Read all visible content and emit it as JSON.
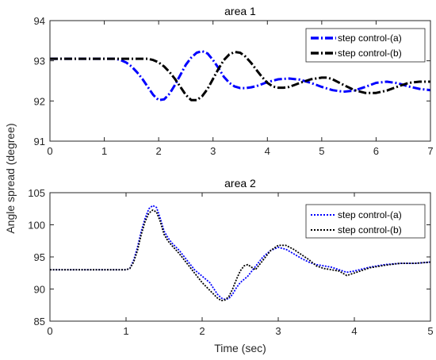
{
  "figure": {
    "shared_ylabel": "Angle spread (degree)"
  },
  "chart_data": [
    {
      "type": "line",
      "title": "area 1",
      "xlabel": "",
      "ylabel": "Angle spread (degree)",
      "xlim": [
        0,
        7
      ],
      "ylim": [
        91,
        94
      ],
      "xticks": [
        0,
        1,
        2,
        3,
        4,
        5,
        6,
        7
      ],
      "yticks": [
        91,
        92,
        93,
        94
      ],
      "grid": false,
      "legend_position": "top-right",
      "series": [
        {
          "name": "step control-(a)",
          "color": "#0000ff",
          "style": "dashdot-thick",
          "x": [
            0,
            1.2,
            1.3,
            1.4,
            1.5,
            1.6,
            1.7,
            1.8,
            1.9,
            2.0,
            2.1,
            2.2,
            2.3,
            2.4,
            2.5,
            2.6,
            2.7,
            2.8,
            2.9,
            3.0,
            3.1,
            3.2,
            3.3,
            3.4,
            3.5,
            3.6,
            3.7,
            3.8,
            3.9,
            4.0,
            4.2,
            4.4,
            4.6,
            4.8,
            5.0,
            5.2,
            5.4,
            5.6,
            5.8,
            6.0,
            6.2,
            6.4,
            6.6,
            6.8,
            7.0
          ],
          "values": [
            93.05,
            93.05,
            93.02,
            92.96,
            92.86,
            92.72,
            92.55,
            92.35,
            92.15,
            92.02,
            92.04,
            92.18,
            92.4,
            92.65,
            92.9,
            93.08,
            93.2,
            93.24,
            93.18,
            93.02,
            92.82,
            92.6,
            92.45,
            92.36,
            92.32,
            92.32,
            92.34,
            92.37,
            92.42,
            92.47,
            92.54,
            92.56,
            92.53,
            92.45,
            92.35,
            92.27,
            92.23,
            92.26,
            92.35,
            92.45,
            92.48,
            92.44,
            92.36,
            92.3,
            92.27
          ]
        },
        {
          "name": "step control-(b)",
          "color": "#000000",
          "style": "dashdot-thick",
          "x": [
            0,
            1.8,
            1.9,
            2.0,
            2.1,
            2.2,
            2.3,
            2.4,
            2.5,
            2.6,
            2.7,
            2.8,
            2.9,
            3.0,
            3.1,
            3.2,
            3.3,
            3.4,
            3.5,
            3.6,
            3.7,
            3.8,
            3.9,
            4.0,
            4.1,
            4.2,
            4.3,
            4.4,
            4.5,
            4.6,
            4.8,
            5.0,
            5.1,
            5.2,
            5.4,
            5.6,
            5.8,
            6.0,
            6.2,
            6.4,
            6.6,
            6.8,
            7.0
          ],
          "values": [
            93.05,
            93.05,
            93.02,
            92.96,
            92.86,
            92.72,
            92.55,
            92.35,
            92.15,
            92.02,
            92.02,
            92.12,
            92.3,
            92.55,
            92.8,
            93.02,
            93.16,
            93.22,
            93.2,
            93.1,
            92.95,
            92.77,
            92.6,
            92.45,
            92.36,
            92.33,
            92.33,
            92.35,
            92.4,
            92.45,
            92.54,
            92.58,
            92.58,
            92.54,
            92.4,
            92.27,
            92.2,
            92.2,
            92.26,
            92.36,
            92.45,
            92.48,
            92.48
          ]
        }
      ]
    },
    {
      "type": "line",
      "title": "area 2",
      "xlabel": "Time (sec)",
      "ylabel": "",
      "xlim": [
        0,
        5
      ],
      "ylim": [
        85,
        105
      ],
      "xticks": [
        0,
        1,
        2,
        3,
        4,
        5
      ],
      "yticks": [
        85,
        90,
        95,
        100,
        105
      ],
      "grid": false,
      "legend_position": "top-right",
      "series": [
        {
          "name": "step control-(a)",
          "color": "#0000ff",
          "style": "dotted",
          "x": [
            0,
            1.0,
            1.05,
            1.1,
            1.15,
            1.2,
            1.25,
            1.3,
            1.35,
            1.4,
            1.45,
            1.5,
            1.55,
            1.6,
            1.7,
            1.8,
            1.9,
            2.0,
            2.1,
            2.2,
            2.25,
            2.3,
            2.35,
            2.4,
            2.45,
            2.5,
            2.55,
            2.6,
            2.7,
            2.8,
            2.9,
            3.0,
            3.1,
            3.2,
            3.3,
            3.4,
            3.5,
            3.6,
            3.7,
            3.8,
            3.9,
            4.0,
            4.2,
            4.4,
            4.6,
            4.8,
            5.0
          ],
          "values": [
            93,
            93,
            93.2,
            94.5,
            96.5,
            99,
            101,
            102.5,
            103,
            102.7,
            101,
            99,
            98,
            97.2,
            96,
            94.5,
            93,
            92,
            91,
            89.2,
            88.6,
            88.4,
            88.5,
            89.2,
            90.2,
            91,
            91.5,
            92,
            93.5,
            95,
            96,
            96.5,
            96.2,
            95.5,
            94.8,
            94.2,
            93.8,
            93.6,
            93.4,
            93,
            92.6,
            92.8,
            93.4,
            93.8,
            94,
            94,
            94.2
          ]
        },
        {
          "name": "step control-(b)",
          "color": "#000000",
          "style": "dotted",
          "x": [
            0,
            1.0,
            1.05,
            1.1,
            1.15,
            1.2,
            1.25,
            1.3,
            1.35,
            1.4,
            1.45,
            1.5,
            1.55,
            1.6,
            1.7,
            1.8,
            1.9,
            2.0,
            2.1,
            2.2,
            2.25,
            2.3,
            2.35,
            2.4,
            2.45,
            2.5,
            2.55,
            2.6,
            2.65,
            2.7,
            2.8,
            2.9,
            3.0,
            3.1,
            3.2,
            3.3,
            3.4,
            3.5,
            3.6,
            3.7,
            3.8,
            3.9,
            4.0,
            4.2,
            4.4,
            4.6,
            4.8,
            5.0
          ],
          "values": [
            93,
            93,
            93.2,
            94.2,
            96,
            98.5,
            100.5,
            101.8,
            102.3,
            102,
            100.5,
            98.5,
            97.5,
            96.8,
            95.5,
            94,
            92.5,
            91,
            89.8,
            88.6,
            88.2,
            88.3,
            88.8,
            90,
            91.5,
            92.8,
            93.6,
            93.8,
            93.4,
            93,
            94.5,
            96,
            96.8,
            96.8,
            96.2,
            95.4,
            94.6,
            93.6,
            93.2,
            93,
            92.8,
            92.1,
            92.5,
            93.3,
            93.7,
            94,
            94,
            94.2
          ]
        }
      ]
    }
  ]
}
